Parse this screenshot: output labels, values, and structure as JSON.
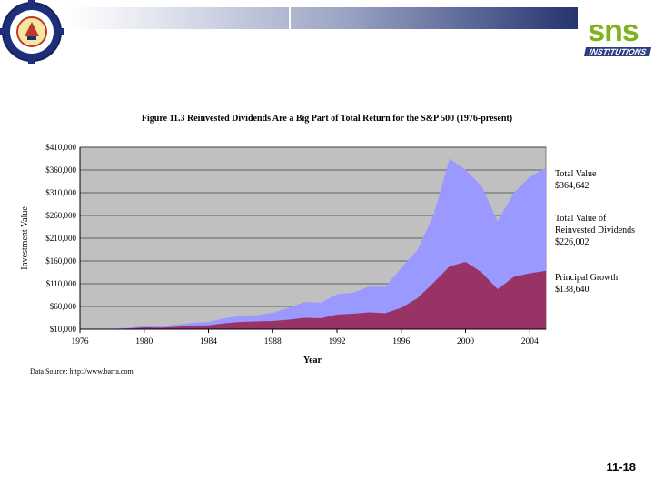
{
  "header": {
    "left_logo_icon": "institution-emblem-icon",
    "right_logo_text": "sns",
    "right_logo_subtext": "INSTITUTIONS"
  },
  "slide_number": "11-18",
  "chart_data": {
    "type": "area",
    "title": "Figure 11.3  Reinvested Dividends Are a Big Part of Total Return for the S&P 500 (1976-present)",
    "xlabel": "Year",
    "ylabel": "Investment Value",
    "source": "Data Source: http://www.barra.com",
    "x": [
      1976,
      1977,
      1978,
      1979,
      1980,
      1981,
      1982,
      1983,
      1984,
      1985,
      1986,
      1987,
      1988,
      1989,
      1990,
      1991,
      1992,
      1993,
      1994,
      1995,
      1996,
      1997,
      1998,
      1999,
      2000,
      2001,
      2002,
      2003,
      2004,
      2005
    ],
    "x_ticks": [
      1976,
      1980,
      1984,
      1988,
      1992,
      1996,
      2000,
      2004
    ],
    "ylim": [
      10000,
      410000
    ],
    "y_ticks": [
      10000,
      60000,
      110000,
      160000,
      210000,
      260000,
      310000,
      360000,
      410000
    ],
    "y_tick_labels": [
      "$10,000",
      "$60,000",
      "$110,000",
      "$160,000",
      "$210,000",
      "$260,000",
      "$310,000",
      "$360,000",
      "$410,000"
    ],
    "grid": "horizontal",
    "series": [
      {
        "name": "Total Value of Reinvested Dividends",
        "color": "#9999ff",
        "values": [
          10000,
          10500,
          11000,
          13000,
          17000,
          16500,
          20000,
          24000,
          26000,
          34000,
          39000,
          41000,
          46000,
          57000,
          70000,
          68000,
          87000,
          90000,
          104000,
          103000,
          145000,
          184000,
          260000,
          385000,
          360000,
          325000,
          247000,
          310000,
          345000,
          364642
        ]
      },
      {
        "name": "Principal Growth",
        "color": "#993366",
        "values": [
          10000,
          10300,
          10600,
          11500,
          14000,
          13200,
          15000,
          18000,
          18500,
          23000,
          26000,
          27000,
          28000,
          31000,
          35000,
          34000,
          42000,
          44000,
          47000,
          45000,
          57000,
          78000,
          112000,
          148000,
          158000,
          135000,
          98000,
          125000,
          133000,
          138640
        ]
      }
    ],
    "plot_background": "#c0c0c0",
    "annotations": [
      {
        "lines": [
          "Total Value",
          "$364,642"
        ]
      },
      {
        "lines": [
          "Total Value of",
          "Reinvested Dividends",
          "$226,002"
        ]
      },
      {
        "lines": [
          "Principal Growth",
          "$138,640"
        ]
      }
    ]
  }
}
